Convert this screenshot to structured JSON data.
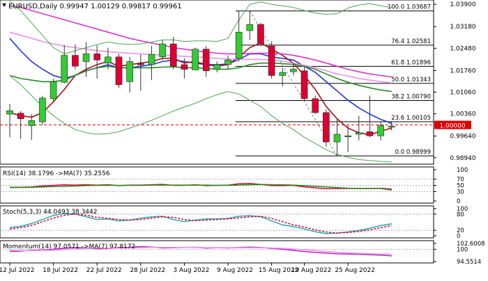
{
  "header": {
    "symbol_line": "EURUSD,Daily  0.99947 1.00129 0.99817 0.99961"
  },
  "price_axis": {
    "ticks": [
      "1.03900",
      "1.03180",
      "1.02480",
      "1.01760",
      "1.01060",
      "1.00360",
      "0.99640",
      "0.98940"
    ],
    "current_price": "1.00000"
  },
  "date_axis": {
    "labels": [
      "12 Jul 2022",
      "18 Jul 2022",
      "22 Jul 2022",
      "28 Jul 2022",
      "3 Aug 2022",
      "9 Aug 2022",
      "15 Aug 2022",
      "19 Aug 2022",
      "25 Aug 2022"
    ]
  },
  "fib_levels": [
    {
      "label": "100.0 1.03687",
      "price": 1.03687
    },
    {
      "label": "76.4 1.02581",
      "price": 1.02581
    },
    {
      "label": "61.8 1.01896",
      "price": 1.01896
    },
    {
      "label": "50.0 1.01343",
      "price": 1.01343
    },
    {
      "label": "38.2 1.00790",
      "price": 1.0079
    },
    {
      "label": "23.6 1.00105",
      "price": 1.00105
    },
    {
      "label": "0.0 0.98999",
      "price": 0.98999
    }
  ],
  "rsi_panel": {
    "title": "RSI(14) 38.1796   ->MA(7) 35.2556",
    "ticks": [
      "100",
      "70",
      "50",
      "30",
      "0"
    ]
  },
  "stoch_panel": {
    "title": "Stoch(5,3,3) 44.0493 38.3442",
    "ticks": [
      "100",
      "80",
      "20",
      "0"
    ]
  },
  "momentum_panel": {
    "title": "Momentum(14) 97.0571   ->MA(7) 97.8172",
    "ticks": [
      "102.6008",
      "100",
      "94.5514"
    ]
  },
  "colors": {
    "bull": "#33cc33",
    "bear": "#dd0033",
    "ema_blue": "#1f33dd",
    "ma_darkred": "#a01010",
    "ma_green": "#228b22",
    "ma_magenta": "#dd33cc",
    "ma_pink": "#e890e8",
    "bollinger": "#4ba84b",
    "current_line": "#dd0000"
  },
  "chart_data": [
    {
      "type": "candlestick",
      "title": "EURUSD,Daily",
      "ylim": [
        0.988,
        1.0395
      ],
      "candles": [
        {
          "date": "2022-07-12",
          "o": 1.0035,
          "h": 1.0068,
          "l": 0.996,
          "c": 1.0046
        },
        {
          "date": "2022-07-13",
          "o": 1.0038,
          "h": 1.0045,
          "l": 0.9955,
          "c": 1.002
        },
        {
          "date": "2022-07-14",
          "o": 0.9998,
          "h": 1.0035,
          "l": 0.9952,
          "c": 1.0014
        },
        {
          "date": "2022-07-15",
          "o": 1.001,
          "h": 1.0094,
          "l": 1.0,
          "c": 1.0087
        },
        {
          "date": "2022-07-18",
          "o": 1.0085,
          "h": 1.015,
          "l": 1.0075,
          "c": 1.014
        },
        {
          "date": "2022-07-19",
          "o": 1.0138,
          "h": 1.0258,
          "l": 1.0135,
          "c": 1.0225
        },
        {
          "date": "2022-07-20",
          "o": 1.0225,
          "h": 1.026,
          "l": 1.018,
          "c": 1.019
        },
        {
          "date": "2022-07-21",
          "o": 1.0205,
          "h": 1.0268,
          "l": 1.0155,
          "c": 1.023
        },
        {
          "date": "2022-07-22",
          "o": 1.023,
          "h": 1.0258,
          "l": 1.015,
          "c": 1.021
        },
        {
          "date": "2022-07-25",
          "o": 1.02,
          "h": 1.025,
          "l": 1.018,
          "c": 1.022
        },
        {
          "date": "2022-07-26",
          "o": 1.022,
          "h": 1.023,
          "l": 1.012,
          "c": 1.013
        },
        {
          "date": "2022-07-27",
          "o": 1.014,
          "h": 1.022,
          "l": 1.0105,
          "c": 1.0205
        },
        {
          "date": "2022-07-28",
          "o": 1.0198,
          "h": 1.0228,
          "l": 1.011,
          "c": 1.0195
        },
        {
          "date": "2022-07-29",
          "o": 1.0195,
          "h": 1.0255,
          "l": 1.0145,
          "c": 1.0228
        },
        {
          "date": "2022-08-01",
          "o": 1.022,
          "h": 1.0275,
          "l": 1.021,
          "c": 1.0262
        },
        {
          "date": "2022-08-02",
          "o": 1.0262,
          "h": 1.0285,
          "l": 1.018,
          "c": 1.019
        },
        {
          "date": "2022-08-03",
          "o": 1.0195,
          "h": 1.0215,
          "l": 1.015,
          "c": 1.018
        },
        {
          "date": "2022-08-04",
          "o": 1.0178,
          "h": 1.025,
          "l": 1.0178,
          "c": 1.0245
        },
        {
          "date": "2022-08-05",
          "o": 1.0245,
          "h": 1.0255,
          "l": 1.0155,
          "c": 1.0175
        },
        {
          "date": "2022-08-08",
          "o": 1.018,
          "h": 1.0205,
          "l": 1.017,
          "c": 1.0195
        },
        {
          "date": "2022-08-09",
          "o": 1.0195,
          "h": 1.0225,
          "l": 1.018,
          "c": 1.021
        },
        {
          "date": "2022-08-10",
          "o": 1.0215,
          "h": 1.0369,
          "l": 1.0205,
          "c": 1.03
        },
        {
          "date": "2022-08-11",
          "o": 1.0305,
          "h": 1.0368,
          "l": 1.0275,
          "c": 1.0325
        },
        {
          "date": "2022-08-12",
          "o": 1.0325,
          "h": 1.033,
          "l": 1.0255,
          "c": 1.0262
        },
        {
          "date": "2022-08-15",
          "o": 1.0255,
          "h": 1.027,
          "l": 1.015,
          "c": 1.016
        },
        {
          "date": "2022-08-16",
          "o": 1.016,
          "h": 1.0185,
          "l": 1.0125,
          "c": 1.017
        },
        {
          "date": "2022-08-17",
          "o": 1.0172,
          "h": 1.02,
          "l": 1.016,
          "c": 1.018
        },
        {
          "date": "2022-08-18",
          "o": 1.0175,
          "h": 1.019,
          "l": 1.008,
          "c": 1.0085
        },
        {
          "date": "2022-08-19",
          "o": 1.0085,
          "h": 1.0095,
          "l": 1.0035,
          "c": 1.004
        },
        {
          "date": "2022-08-22",
          "o": 1.004,
          "h": 1.005,
          "l": 0.993,
          "c": 0.9945
        },
        {
          "date": "2022-08-23",
          "o": 0.9945,
          "h": 1.002,
          "l": 0.99,
          "c": 0.997
        },
        {
          "date": "2022-08-24",
          "o": 0.9965,
          "h": 0.9998,
          "l": 0.9912,
          "c": 0.9965
        },
        {
          "date": "2022-08-25",
          "o": 0.997,
          "h": 1.003,
          "l": 0.995,
          "c": 0.9975
        },
        {
          "date": "2022-08-26",
          "o": 0.9978,
          "h": 1.0095,
          "l": 0.996,
          "c": 0.9965
        },
        {
          "date": "2022-08-29",
          "o": 0.9965,
          "h": 1.001,
          "l": 0.995,
          "c": 0.9998
        },
        {
          "date": "2022-08-30",
          "o": 0.9995,
          "h": 1.0013,
          "l": 0.9982,
          "c": 0.9996
        }
      ],
      "overlays": [
        {
          "color": "#1f33dd",
          "values": [
            1.028,
            1.024,
            1.0205,
            1.018,
            1.016,
            1.015,
            1.016,
            1.0175,
            1.0185,
            1.0195,
            1.0185,
            1.0185,
            1.019,
            1.0195,
            1.0205,
            1.021,
            1.0205,
            1.02,
            1.0195,
            1.0195,
            1.0197,
            1.0212,
            1.023,
            1.023,
            1.022,
            1.0215,
            1.021,
            1.019,
            1.017,
            1.014,
            1.011,
            1.008,
            1.0055,
            1.0035,
            1.0018,
            1.0005
          ]
        },
        {
          "color": "#a01010",
          "values": [
            1.004,
            1.003,
            1.0025,
            1.004,
            1.0075,
            1.0115,
            1.016,
            1.018,
            1.0195,
            1.0205,
            1.019,
            1.0195,
            1.02,
            1.0205,
            1.0215,
            1.0215,
            1.02,
            1.0205,
            1.0195,
            1.019,
            1.0195,
            1.022,
            1.025,
            1.0265,
            1.0245,
            1.0225,
            1.02,
            1.016,
            1.0115,
            1.006,
            1.002,
            0.999,
            0.9975,
            0.9968,
            0.998,
            0.999
          ]
        },
        {
          "color": "#228b22",
          "values": [
            1.016,
            1.015,
            1.0145,
            1.014,
            1.014,
            1.0145,
            1.016,
            1.0175,
            1.0185,
            1.019,
            1.0185,
            1.0185,
            1.0185,
            1.0185,
            1.0187,
            1.0188,
            1.0185,
            1.0185,
            1.0183,
            1.018,
            1.018,
            1.0185,
            1.0195,
            1.02,
            1.02,
            1.0198,
            1.0196,
            1.019,
            1.018,
            1.0165,
            1.015,
            1.0138,
            1.0128,
            1.012,
            1.0113,
            1.0108
          ]
        },
        {
          "color": "#dd33cc",
          "values": [
            1.0385,
            1.038,
            1.037,
            1.036,
            1.035,
            1.034,
            1.033,
            1.032,
            1.031,
            1.03,
            1.029,
            1.028,
            1.0272,
            1.0265,
            1.0258,
            1.025,
            1.0245,
            1.024,
            1.0236,
            1.0232,
            1.023,
            1.023,
            1.0231,
            1.0232,
            1.0232,
            1.023,
            1.0225,
            1.0218,
            1.021,
            1.02,
            1.019,
            1.018,
            1.0172,
            1.0165,
            1.016,
            1.0155
          ]
        },
        {
          "color": "#e890e8",
          "values": [
            1.03,
            1.029,
            1.028,
            1.027,
            1.0262,
            1.0255,
            1.025,
            1.0245,
            1.024,
            1.0237,
            1.0234,
            1.0232,
            1.023,
            1.0228,
            1.0226,
            1.0224,
            1.0222,
            1.022,
            1.0218,
            1.0215,
            1.0213,
            1.0212,
            1.0212,
            1.0212,
            1.021,
            1.0206,
            1.02,
            1.0193,
            1.0185,
            1.0175,
            1.0165,
            1.0158,
            1.015,
            1.0145,
            1.014,
            1.0136
          ]
        },
        {
          "color": "#4ba84b",
          "values": [
            1.04,
            1.037,
            1.033,
            1.029,
            1.025,
            1.023,
            1.024,
            1.025,
            1.026,
            1.0268,
            1.0263,
            1.026,
            1.0262,
            1.0268,
            1.0275,
            1.0275,
            1.027,
            1.0272,
            1.0272,
            1.027,
            1.028,
            1.034,
            1.039,
            1.0398,
            1.039,
            1.0385,
            1.038,
            1.037,
            1.0362,
            1.0358,
            1.036,
            1.0378,
            1.0388,
            1.0392,
            1.0385,
            1.038
          ]
        },
        {
          "color": "#4ba84b",
          "values": [
            1.016,
            1.013,
            1.0095,
            1.006,
            1.003,
            1.0005,
            0.9985,
            0.9975,
            0.997,
            0.9972,
            0.9978,
            0.999,
            1.0002,
            1.0015,
            1.003,
            1.0045,
            1.0058,
            1.007,
            1.0085,
            1.0098,
            1.0108,
            1.01,
            1.008,
            1.006,
            1.003,
            1.0005,
            0.9985,
            0.996,
            0.994,
            0.992,
            0.9905,
            0.9895,
            0.9888,
            0.9885,
            0.9882,
            0.988
          ]
        }
      ]
    },
    {
      "type": "line",
      "title": "RSI(14)",
      "ylim": [
        0,
        100
      ],
      "series": [
        {
          "color": "#dd0033",
          "values": [
            44,
            44,
            45,
            48,
            50,
            52,
            51,
            52,
            51,
            52,
            49,
            51,
            51,
            52,
            53,
            50,
            50,
            52,
            49,
            50,
            51,
            55,
            56,
            53,
            49,
            49,
            50,
            45,
            42,
            39,
            40,
            40,
            40,
            40,
            41,
            38
          ]
        },
        {
          "color": "#228b22",
          "values": [
            43,
            43,
            44,
            45,
            46,
            47,
            48,
            49,
            50,
            50,
            50,
            50,
            50,
            51,
            51,
            51,
            51,
            51,
            51,
            50,
            50,
            51,
            52,
            53,
            52,
            52,
            51,
            49,
            47,
            45,
            43,
            41,
            40,
            40,
            40,
            35
          ]
        }
      ]
    },
    {
      "type": "line",
      "title": "Stoch(5,3,3)",
      "ylim": [
        0,
        100
      ],
      "series": [
        {
          "color": "#2aa6b0",
          "values": [
            30,
            35,
            45,
            60,
            75,
            82,
            80,
            70,
            60,
            62,
            55,
            58,
            65,
            70,
            72,
            60,
            52,
            58,
            62,
            62,
            64,
            72,
            74,
            70,
            55,
            40,
            34,
            25,
            15,
            8,
            10,
            14,
            20,
            28,
            38,
            44
          ]
        },
        {
          "color": "#dd0033",
          "values": [
            25,
            30,
            38,
            52,
            65,
            76,
            80,
            76,
            68,
            64,
            60,
            58,
            60,
            65,
            70,
            68,
            60,
            56,
            58,
            60,
            62,
            66,
            70,
            72,
            64,
            52,
            40,
            32,
            22,
            14,
            10,
            12,
            16,
            22,
            30,
            38
          ]
        }
      ]
    },
    {
      "type": "line",
      "title": "Momentum(14)",
      "ylim": [
        94.5514,
        102.6008
      ],
      "series": [
        {
          "color": "#c020c0",
          "values": [
            99.0,
            99.2,
            99.6,
            99.7,
            100.0,
            100.5,
            100.8,
            100.6,
            100.2,
            100.4,
            100.8,
            100.9,
            101.2,
            101.0,
            100.6,
            100.7,
            100.8,
            100.9,
            100.5,
            100.7,
            100.6,
            100.8,
            101.0,
            100.8,
            100.4,
            100.0,
            99.5,
            99.0,
            98.6,
            98.3,
            98.0,
            97.9,
            97.8,
            97.6,
            97.4,
            97.05
          ]
        },
        {
          "color": "#e890e8",
          "values": [
            99.5,
            99.4,
            99.4,
            99.5,
            99.6,
            99.9,
            100.2,
            100.4,
            100.5,
            100.5,
            100.6,
            100.6,
            100.7,
            100.8,
            100.8,
            100.8,
            100.8,
            100.8,
            100.7,
            100.7,
            100.7,
            100.7,
            100.7,
            100.7,
            100.6,
            100.4,
            100.1,
            99.8,
            99.4,
            99.0,
            98.7,
            98.4,
            98.2,
            98.0,
            97.9,
            97.8
          ]
        }
      ]
    }
  ]
}
